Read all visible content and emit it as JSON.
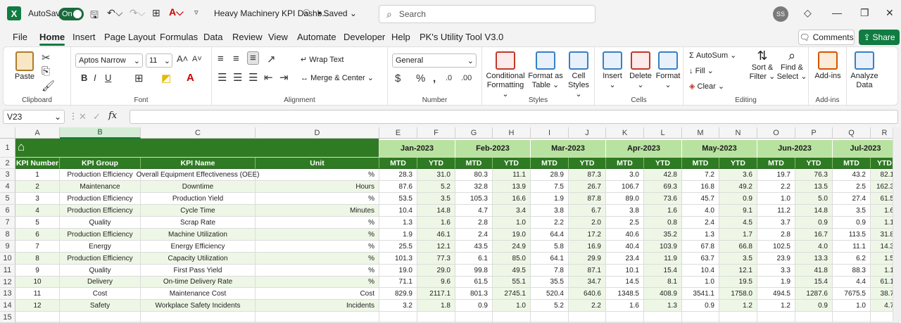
{
  "titlebar": {
    "autosave_label": "AutoSave",
    "toggle_label": "On",
    "doc_title": "Heavy Machinery KPI Dashb...",
    "saved_label": "• Saved",
    "search_placeholder": "Search",
    "avatar_initials": "SS"
  },
  "tabs": [
    "File",
    "Home",
    "Insert",
    "Page Layout",
    "Formulas",
    "Data",
    "Review",
    "View",
    "Automate",
    "Developer",
    "Help",
    "PK's Utility Tool V3.0"
  ],
  "actions": {
    "comments": "Comments",
    "share": "Share"
  },
  "ribbon": {
    "clipboard": {
      "label": "Clipboard",
      "paste": "Paste"
    },
    "font": {
      "label": "Font",
      "family": "Aptos Narrow",
      "size": "11"
    },
    "alignment": {
      "label": "Alignment",
      "wrap": "Wrap Text",
      "merge": "Merge & Center"
    },
    "number": {
      "label": "Number",
      "format": "General"
    },
    "styles": {
      "label": "Styles",
      "cond1": "Conditional",
      "cond2": "Formatting",
      "fmt1": "Format as",
      "fmt2": "Table",
      "cell1": "Cell",
      "cell2": "Styles"
    },
    "cells": {
      "label": "Cells",
      "insert": "Insert",
      "delete": "Delete",
      "format": "Format"
    },
    "editing": {
      "label": "Editing",
      "autosum": "AutoSum",
      "fill": "Fill",
      "clear": "Clear",
      "sort1": "Sort &",
      "sort2": "Filter",
      "find1": "Find &",
      "find2": "Select"
    },
    "addins": {
      "label": "Add-ins",
      "btn": "Add-ins"
    },
    "analyze": {
      "line1": "Analyze",
      "line2": "Data"
    }
  },
  "formula_bar": {
    "name_box": "V23",
    "fx": "fx",
    "content": ""
  },
  "sheet": {
    "columns": [
      "A",
      "B",
      "C",
      "D",
      "E",
      "F",
      "G",
      "H",
      "I",
      "J",
      "K",
      "L",
      "M",
      "N",
      "O",
      "P",
      "Q",
      "R"
    ],
    "rows": [
      "1",
      "2",
      "3",
      "4",
      "5",
      "6",
      "7",
      "8",
      "9",
      "10",
      "11",
      "12",
      "13",
      "14",
      "15"
    ],
    "months": [
      "Jan-2023",
      "Feb-2023",
      "Mar-2023",
      "Apr-2023",
      "May-2023",
      "Jun-2023",
      "Jul-2023"
    ],
    "headers": [
      "KPI Number",
      "KPI Group",
      "KPI Name",
      "Unit"
    ],
    "mtd": "MTD",
    "ytd": "YTD",
    "kpis": [
      {
        "num": "1",
        "group": "Production Efficiency",
        "name": "Overall Equipment Effectiveness (OEE)",
        "unit": "%",
        "vals": [
          "28.3",
          "31.0",
          "80.3",
          "11.1",
          "28.9",
          "87.3",
          "3.0",
          "42.8",
          "7.2",
          "3.6",
          "19.7",
          "76.3",
          "43.2",
          "82.1"
        ]
      },
      {
        "num": "2",
        "group": "Maintenance",
        "name": "Downtime",
        "unit": "Hours",
        "vals": [
          "87.6",
          "5.2",
          "32.8",
          "13.9",
          "7.5",
          "26.7",
          "106.7",
          "69.3",
          "16.8",
          "49.2",
          "2.2",
          "13.5",
          "2.5",
          "162.3"
        ]
      },
      {
        "num": "3",
        "group": "Production Efficiency",
        "name": "Production Yield",
        "unit": "%",
        "vals": [
          "53.5",
          "3.5",
          "105.3",
          "16.6",
          "1.9",
          "87.8",
          "89.0",
          "73.6",
          "45.7",
          "0.9",
          "1.0",
          "5.0",
          "27.4",
          "61.5"
        ]
      },
      {
        "num": "4",
        "group": "Production Efficiency",
        "name": "Cycle Time",
        "unit": "Minutes",
        "vals": [
          "10.4",
          "14.8",
          "4.7",
          "3.4",
          "3.8",
          "6.7",
          "3.8",
          "1.6",
          "4.0",
          "9.1",
          "11.2",
          "14.8",
          "3.5",
          "1.6"
        ]
      },
      {
        "num": "5",
        "group": "Quality",
        "name": "Scrap Rate",
        "unit": "%",
        "vals": [
          "1.3",
          "1.6",
          "2.8",
          "1.0",
          "2.2",
          "2.0",
          "2.5",
          "0.8",
          "2.4",
          "4.5",
          "3.7",
          "0.9",
          "0.9",
          "1.1"
        ]
      },
      {
        "num": "6",
        "group": "Production Efficiency",
        "name": "Machine Utilization",
        "unit": "%",
        "vals": [
          "1.9",
          "46.1",
          "2.4",
          "19.0",
          "64.4",
          "17.2",
          "40.6",
          "35.2",
          "1.3",
          "1.7",
          "2.8",
          "16.7",
          "113.5",
          "31.8"
        ]
      },
      {
        "num": "7",
        "group": "Energy",
        "name": "Energy Efficiency",
        "unit": "%",
        "vals": [
          "25.5",
          "12.1",
          "43.5",
          "24.9",
          "5.8",
          "16.9",
          "40.4",
          "103.9",
          "67.8",
          "66.8",
          "102.5",
          "4.0",
          "11.1",
          "14.3"
        ]
      },
      {
        "num": "8",
        "group": "Production Efficiency",
        "name": "Capacity Utilization",
        "unit": "%",
        "vals": [
          "101.3",
          "77.3",
          "6.1",
          "85.0",
          "64.1",
          "29.9",
          "23.4",
          "11.9",
          "63.7",
          "3.5",
          "23.9",
          "13.3",
          "6.2",
          "1.5"
        ]
      },
      {
        "num": "9",
        "group": "Quality",
        "name": "First Pass Yield",
        "unit": "%",
        "vals": [
          "19.0",
          "29.0",
          "99.8",
          "49.5",
          "7.8",
          "87.1",
          "10.1",
          "15.4",
          "10.4",
          "12.1",
          "3.3",
          "41.8",
          "88.3",
          "1.1"
        ]
      },
      {
        "num": "10",
        "group": "Delivery",
        "name": "On-time Delivery Rate",
        "unit": "%",
        "vals": [
          "71.1",
          "9.6",
          "61.5",
          "55.1",
          "35.5",
          "34.7",
          "14.5",
          "8.1",
          "1.0",
          "19.5",
          "1.9",
          "15.4",
          "4.4",
          "61.1"
        ]
      },
      {
        "num": "11",
        "group": "Cost",
        "name": "Maintenance Cost",
        "unit": "Cost",
        "vals": [
          "829.9",
          "2117.1",
          "801.3",
          "2745.1",
          "520.4",
          "640.6",
          "1348.5",
          "408.9",
          "3541.1",
          "1758.0",
          "494.5",
          "1287.6",
          "7675.5",
          "38.7"
        ]
      },
      {
        "num": "12",
        "group": "Safety",
        "name": "Workplace Safety Incidents",
        "unit": "Incidents",
        "vals": [
          "3.2",
          "1.8",
          "0.9",
          "1.0",
          "5.2",
          "2.2",
          "1.6",
          "1.3",
          "0.9",
          "1.2",
          "1.2",
          "0.9",
          "1.0",
          "4.7"
        ]
      }
    ]
  }
}
